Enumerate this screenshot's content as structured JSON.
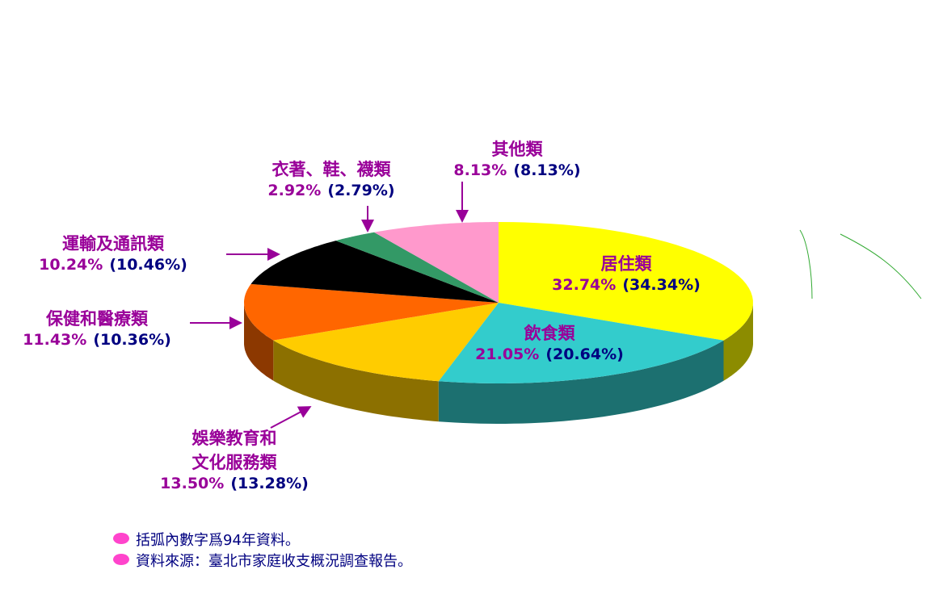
{
  "chart_data": {
    "type": "pie",
    "categories": [
      "居住類",
      "飲食類",
      "娛樂教育和\n文化服務類",
      "保健和醫療類",
      "運輸及通訊類",
      "衣著、鞋、襪類",
      "其他類"
    ],
    "values": [
      32.74,
      21.05,
      13.5,
      11.43,
      10.24,
      2.92,
      8.13
    ],
    "value_labels": [
      "32.74%",
      "21.05%",
      "13.50%",
      "11.43%",
      "10.24%",
      "2.92%",
      "8.13%"
    ],
    "previous_labels": [
      "(34.34%)",
      "(20.64%)",
      "(13.28%)",
      "(10.36%)",
      "(10.46%)",
      "(2.79%)",
      "(8.13%)"
    ],
    "colors": [
      "#ffff00",
      "#33cccc",
      "#ffcc00",
      "#ff6600",
      "#000000",
      "#339966",
      "#ff99cc"
    ],
    "notes": [
      "括弧內數字爲94年資料。",
      "資料來源：臺北市家庭收支概況調查報告。"
    ]
  }
}
